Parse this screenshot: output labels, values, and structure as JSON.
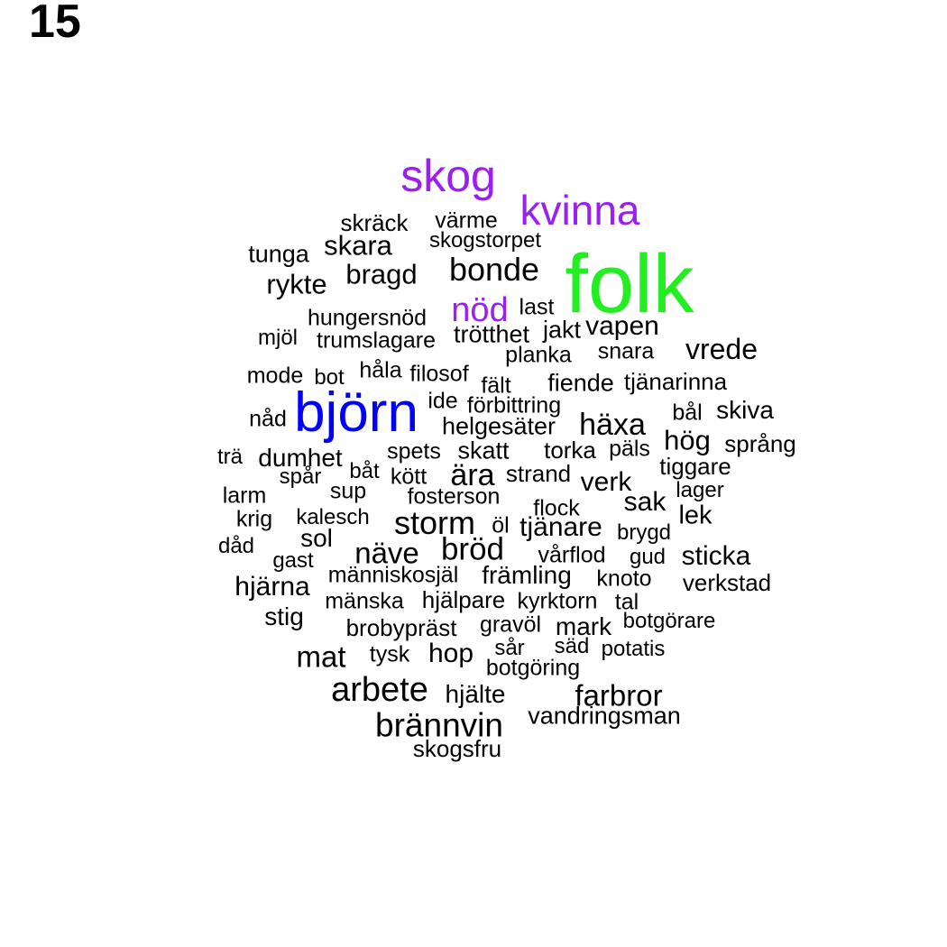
{
  "page_number": "15",
  "colors": {
    "black": "#000000",
    "green": "#22ee22",
    "blue": "#0000ff",
    "purple": "#9b1ff0"
  },
  "words": [
    {
      "text": "skog",
      "color": "purple"
    },
    {
      "text": "kvinna",
      "color": "purple"
    },
    {
      "text": "skräck",
      "color": "black"
    },
    {
      "text": "värme",
      "color": "black"
    },
    {
      "text": "skogstorpet",
      "color": "black"
    },
    {
      "text": "skara",
      "color": "black"
    },
    {
      "text": "tunga",
      "color": "black"
    },
    {
      "text": "folk",
      "color": "green"
    },
    {
      "text": "bonde",
      "color": "black"
    },
    {
      "text": "bragd",
      "color": "black"
    },
    {
      "text": "rykte",
      "color": "black"
    },
    {
      "text": "nöd",
      "color": "purple"
    },
    {
      "text": "last",
      "color": "black"
    },
    {
      "text": "hungersnöd",
      "color": "black"
    },
    {
      "text": "jakt",
      "color": "black"
    },
    {
      "text": "vapen",
      "color": "black"
    },
    {
      "text": "mjöl",
      "color": "black"
    },
    {
      "text": "trumslagare",
      "color": "black"
    },
    {
      "text": "trötthet",
      "color": "black"
    },
    {
      "text": "vrede",
      "color": "black"
    },
    {
      "text": "planka",
      "color": "black"
    },
    {
      "text": "snara",
      "color": "black"
    },
    {
      "text": "mode",
      "color": "black"
    },
    {
      "text": "bot",
      "color": "black"
    },
    {
      "text": "håla",
      "color": "black"
    },
    {
      "text": "filosof",
      "color": "black"
    },
    {
      "text": "fält",
      "color": "black"
    },
    {
      "text": "fiende",
      "color": "black"
    },
    {
      "text": "tjänarinna",
      "color": "black"
    },
    {
      "text": "björn",
      "color": "blue"
    },
    {
      "text": "ide",
      "color": "black"
    },
    {
      "text": "förbittring",
      "color": "black"
    },
    {
      "text": "nåd",
      "color": "black"
    },
    {
      "text": "bål",
      "color": "black"
    },
    {
      "text": "skiva",
      "color": "black"
    },
    {
      "text": "helgesäter",
      "color": "black"
    },
    {
      "text": "häxa",
      "color": "black"
    },
    {
      "text": "hög",
      "color": "black"
    },
    {
      "text": "språng",
      "color": "black"
    },
    {
      "text": "trä",
      "color": "black"
    },
    {
      "text": "dumhet",
      "color": "black"
    },
    {
      "text": "spets",
      "color": "black"
    },
    {
      "text": "skatt",
      "color": "black"
    },
    {
      "text": "torka",
      "color": "black"
    },
    {
      "text": "päls",
      "color": "black"
    },
    {
      "text": "spår",
      "color": "black"
    },
    {
      "text": "båt",
      "color": "black"
    },
    {
      "text": "kött",
      "color": "black"
    },
    {
      "text": "ära",
      "color": "black"
    },
    {
      "text": "strand",
      "color": "black"
    },
    {
      "text": "tiggare",
      "color": "black"
    },
    {
      "text": "verk",
      "color": "black"
    },
    {
      "text": "larm",
      "color": "black"
    },
    {
      "text": "sup",
      "color": "black"
    },
    {
      "text": "fosterson",
      "color": "black"
    },
    {
      "text": "lager",
      "color": "black"
    },
    {
      "text": "sak",
      "color": "black"
    },
    {
      "text": "flock",
      "color": "black"
    },
    {
      "text": "krig",
      "color": "black"
    },
    {
      "text": "kalesch",
      "color": "black"
    },
    {
      "text": "storm",
      "color": "black"
    },
    {
      "text": "öl",
      "color": "black"
    },
    {
      "text": "tjänare",
      "color": "black"
    },
    {
      "text": "lek",
      "color": "black"
    },
    {
      "text": "brygd",
      "color": "black"
    },
    {
      "text": "dåd",
      "color": "black"
    },
    {
      "text": "sol",
      "color": "black"
    },
    {
      "text": "näve",
      "color": "black"
    },
    {
      "text": "bröd",
      "color": "black"
    },
    {
      "text": "vårflod",
      "color": "black"
    },
    {
      "text": "gud",
      "color": "black"
    },
    {
      "text": "sticka",
      "color": "black"
    },
    {
      "text": "gast",
      "color": "black"
    },
    {
      "text": "människosjäl",
      "color": "black"
    },
    {
      "text": "främling",
      "color": "black"
    },
    {
      "text": "knoto",
      "color": "black"
    },
    {
      "text": "verkstad",
      "color": "black"
    },
    {
      "text": "hjärna",
      "color": "black"
    },
    {
      "text": "mänska",
      "color": "black"
    },
    {
      "text": "hjälpare",
      "color": "black"
    },
    {
      "text": "kyrktorn",
      "color": "black"
    },
    {
      "text": "tal",
      "color": "black"
    },
    {
      "text": "stig",
      "color": "black"
    },
    {
      "text": "brobypräst",
      "color": "black"
    },
    {
      "text": "gravöl",
      "color": "black"
    },
    {
      "text": "mark",
      "color": "black"
    },
    {
      "text": "botgörare",
      "color": "black"
    },
    {
      "text": "mat",
      "color": "black"
    },
    {
      "text": "tysk",
      "color": "black"
    },
    {
      "text": "hop",
      "color": "black"
    },
    {
      "text": "sår",
      "color": "black"
    },
    {
      "text": "säd",
      "color": "black"
    },
    {
      "text": "potatis",
      "color": "black"
    },
    {
      "text": "botgöring",
      "color": "black"
    },
    {
      "text": "arbete",
      "color": "black"
    },
    {
      "text": "hjälte",
      "color": "black"
    },
    {
      "text": "farbror",
      "color": "black"
    },
    {
      "text": "vandringsman",
      "color": "black"
    },
    {
      "text": "brännvin",
      "color": "black"
    },
    {
      "text": "skogsfru",
      "color": "black"
    }
  ]
}
